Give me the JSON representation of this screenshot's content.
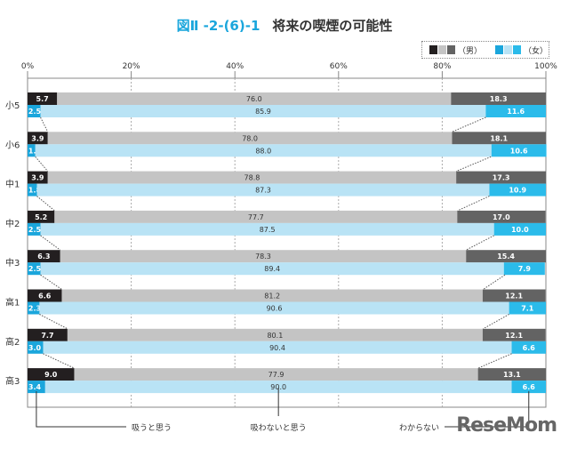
{
  "title": {
    "number": "図Ⅱ -2-(6)-1",
    "text": "将来の喫煙の可能性"
  },
  "legend": {
    "male": "（男）",
    "female": "（女）",
    "male_colors": [
      "#231f20",
      "#c4c4c4",
      "#636363"
    ],
    "female_colors": [
      "#1aa6dc",
      "#b9e3f5",
      "#2bbbea"
    ]
  },
  "brand": "ReseMom",
  "chart_data": {
    "type": "bar",
    "orientation": "horizontal-stacked-100",
    "title": "将来の喫煙の可能性",
    "xlim": [
      0,
      100
    ],
    "xticks": [
      "0%",
      "20%",
      "40%",
      "60%",
      "80%",
      "100%"
    ],
    "grid": true,
    "legend": "top-right",
    "categories": [
      "小5",
      "小6",
      "中1",
      "中2",
      "中3",
      "高1",
      "高2",
      "高3"
    ],
    "segment_labels": [
      "吸うと思う",
      "吸わないと思う",
      "わからない"
    ],
    "series": [
      {
        "name": "（男）",
        "values": [
          [
            5.7,
            76.0,
            18.3
          ],
          [
            3.9,
            78.0,
            18.1
          ],
          [
            3.9,
            78.8,
            17.3
          ],
          [
            5.2,
            77.7,
            17.0
          ],
          [
            6.3,
            78.3,
            15.4
          ],
          [
            6.6,
            81.2,
            12.1
          ],
          [
            7.7,
            80.1,
            12.1
          ],
          [
            9.0,
            77.9,
            13.1
          ]
        ]
      },
      {
        "name": "（女）",
        "values": [
          [
            2.5,
            85.9,
            11.6
          ],
          [
            1.5,
            88.0,
            10.6
          ],
          [
            1.8,
            87.3,
            10.9
          ],
          [
            2.5,
            87.5,
            10.0
          ],
          [
            2.5,
            89.4,
            7.9
          ],
          [
            2.3,
            90.6,
            7.1
          ],
          [
            3.0,
            90.4,
            6.6
          ],
          [
            3.4,
            90.0,
            6.6
          ]
        ]
      }
    ]
  }
}
